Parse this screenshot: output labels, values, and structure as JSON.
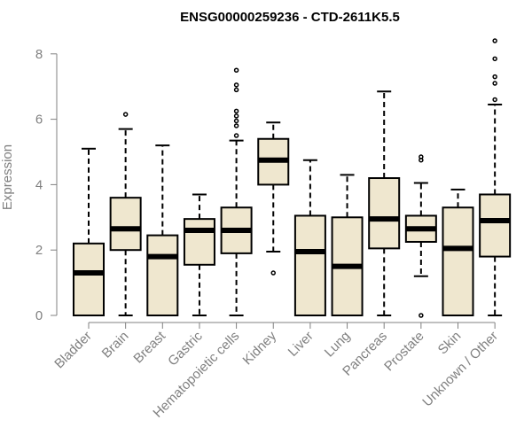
{
  "chart_data": {
    "type": "boxplot",
    "title": "ENSG00000259236 - CTD-2611K5.5",
    "xlabel": "",
    "ylabel": "Expression",
    "ylim": [
      0,
      8.5
    ],
    "yticks": [
      0,
      2,
      4,
      6,
      8
    ],
    "grid": false,
    "colors": {
      "box_fill": "#efe7cf",
      "stroke": "#000000",
      "axis": "#808080"
    },
    "categories": [
      "Bladder",
      "Brain",
      "Breast",
      "Gastric",
      "Hematopoietic cells",
      "Kidney",
      "Liver",
      "Lung",
      "Pancreas",
      "Prostate",
      "Skin",
      "Unknown / Other"
    ],
    "boxes": [
      {
        "min": 0,
        "q1": 0,
        "median": 1.3,
        "q3": 2.2,
        "max": 5.1,
        "outliers": []
      },
      {
        "min": 0,
        "q1": 2.0,
        "median": 2.65,
        "q3": 3.6,
        "max": 5.7,
        "outliers": [
          6.15
        ]
      },
      {
        "min": 0,
        "q1": 0,
        "median": 1.8,
        "q3": 2.45,
        "max": 5.2,
        "outliers": []
      },
      {
        "min": 0,
        "q1": 1.55,
        "median": 2.6,
        "q3": 2.95,
        "max": 3.7,
        "outliers": []
      },
      {
        "min": 0,
        "q1": 1.9,
        "median": 2.6,
        "q3": 3.3,
        "max": 5.35,
        "outliers": [
          5.5,
          5.8,
          5.95,
          6.1,
          6.25,
          6.9,
          7.05,
          7.5
        ]
      },
      {
        "min": 1.95,
        "q1": 4.0,
        "median": 4.75,
        "q3": 5.4,
        "max": 5.9,
        "outliers": [
          1.3
        ]
      },
      {
        "min": 0,
        "q1": 0,
        "median": 1.95,
        "q3": 3.05,
        "max": 4.75,
        "outliers": []
      },
      {
        "min": 0,
        "q1": 0,
        "median": 1.5,
        "q3": 3.0,
        "max": 4.3,
        "outliers": []
      },
      {
        "min": 0,
        "q1": 2.05,
        "median": 2.95,
        "q3": 4.2,
        "max": 6.85,
        "outliers": []
      },
      {
        "min": 1.2,
        "q1": 2.25,
        "median": 2.65,
        "q3": 3.05,
        "max": 4.05,
        "outliers": [
          0,
          4.75,
          4.85
        ]
      },
      {
        "min": 0,
        "q1": 0,
        "median": 2.05,
        "q3": 3.3,
        "max": 3.85,
        "outliers": []
      },
      {
        "min": 0,
        "q1": 1.8,
        "median": 2.9,
        "q3": 3.7,
        "max": 6.45,
        "outliers": [
          6.6,
          7.1,
          7.3,
          7.85,
          8.4
        ]
      }
    ]
  }
}
